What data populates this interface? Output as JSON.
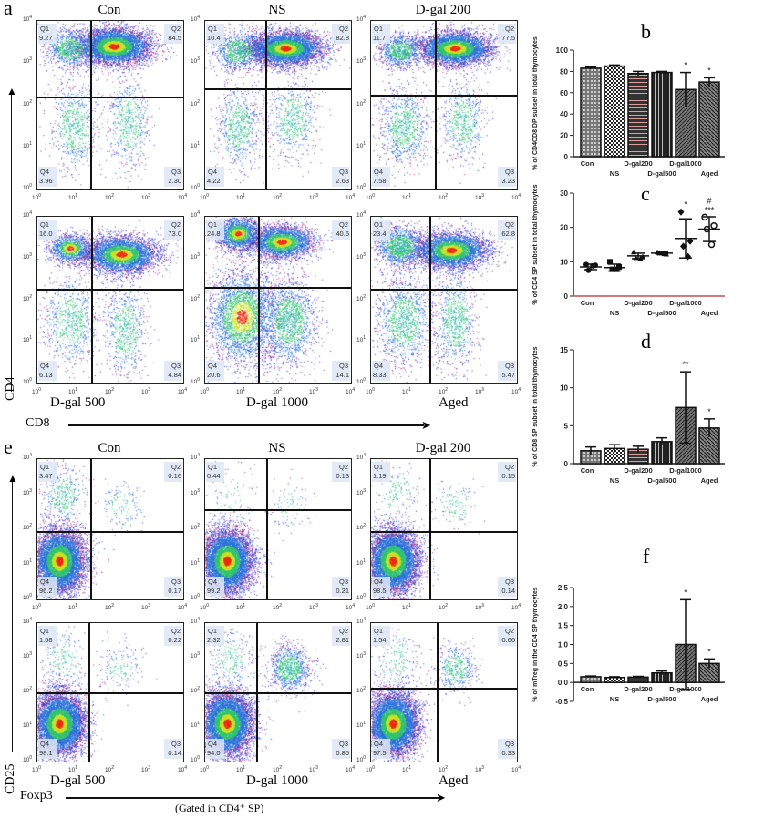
{
  "panel_labels": {
    "a": "a",
    "b": "b",
    "c": "c",
    "d": "d",
    "e": "e",
    "f": "f"
  },
  "panel_a": {
    "x_axis": "CD8",
    "y_axis": "CD4",
    "plots": [
      {
        "title": "Con",
        "q1": "9.27",
        "q2": "84.5",
        "q3": "2.30",
        "q4": "3.96"
      },
      {
        "title": "NS",
        "q1": "10.4",
        "q2": "82.8",
        "q3": "2.63",
        "q4": "4.22"
      },
      {
        "title": "D-gal 200",
        "q1": "11.7",
        "q2": "77.5",
        "q3": "3.23",
        "q4": "7.58"
      },
      {
        "title": "D-gal 500",
        "q1": "16.0",
        "q2": "73.0",
        "q3": "4.84",
        "q4": "6.13"
      },
      {
        "title": "D-gal 1000",
        "q1": "24.8",
        "q2": "40.6",
        "q3": "14.1",
        "q4": "20.6"
      },
      {
        "title": "Aged",
        "q1": "23.4",
        "q2": "62.8",
        "q3": "5.47",
        "q4": "8.33"
      }
    ]
  },
  "panel_e": {
    "x_axis": "Foxp3",
    "y_axis": "CD25",
    "gating_note": "(Gated in CD4⁺ SP)",
    "plots": [
      {
        "title": "Con",
        "q1": "3.47",
        "q2": "0.16",
        "q3": "0.17",
        "q4": "96.2"
      },
      {
        "title": "NS",
        "q1": "0.44",
        "q2": "0.13",
        "q3": "0.21",
        "q4": "99.2"
      },
      {
        "title": "D-gal 200",
        "q1": "1.19",
        "q2": "0.15",
        "q3": "0.14",
        "q4": "98.5"
      },
      {
        "title": "D-gal 500",
        "q1": "1.58",
        "q2": "0.22",
        "q3": "0.14",
        "q4": "98.1"
      },
      {
        "title": "D-gal 1000",
        "q1": "2.32",
        "q2": "2.81",
        "q3": "0.85",
        "q4": "94.0"
      },
      {
        "title": "Aged",
        "q1": "1.54",
        "q2": "0.66",
        "q3": "0.33",
        "q4": "97.5"
      }
    ]
  },
  "quadrant_names": [
    "Q1",
    "Q2",
    "Q3",
    "Q4"
  ],
  "flow_ticks": [
    "0",
    "1",
    "2",
    "3",
    "4"
  ],
  "chart_data": [
    {
      "id": "b",
      "type": "bar",
      "ylabel": "% of CD4CD8 DP subset in total thymocytes",
      "categories": [
        "Con",
        "NS",
        "D-gal200",
        "D-gal500",
        "D-gal1000",
        "Aged"
      ],
      "values": [
        83,
        85,
        78,
        79,
        63,
        70
      ],
      "errors": [
        1,
        1,
        2,
        1,
        16,
        4
      ],
      "annotations": [
        "",
        "",
        "",
        "",
        "*",
        "*"
      ],
      "ylim": [
        0,
        100
      ],
      "yticks": [
        "0",
        "20",
        "40",
        "60",
        "80",
        "100"
      ]
    },
    {
      "id": "c",
      "type": "scatter",
      "ylabel": "% of CD4 SP subset in total thymocytes",
      "categories": [
        "Con",
        "NS",
        "D-gal200",
        "D-gal500",
        "D-gal1000",
        "Aged"
      ],
      "points": [
        [
          9.2,
          9.0,
          7.5,
          8.8
        ],
        [
          10.0,
          8.5,
          7.8,
          7.8
        ],
        [
          12.8,
          11.5,
          11.2,
          11.0
        ],
        [
          12.8,
          12.2,
          12.5,
          12.3
        ],
        [
          24.5,
          16.0,
          14.5,
          11.5
        ],
        [
          23.0,
          20.5,
          19.5,
          15.0
        ]
      ],
      "means": [
        8.5,
        8.3,
        11.7,
        12.5,
        16.8,
        19.5
      ],
      "errors": [
        0.8,
        1.0,
        0.8,
        0.3,
        5.7,
        3.6
      ],
      "annotations": [
        "",
        "",
        "",
        "",
        "*",
        "#\n***"
      ],
      "ylim": [
        0,
        30
      ],
      "yticks": [
        "0",
        "10",
        "20",
        "30"
      ]
    },
    {
      "id": "d",
      "type": "bar",
      "ylabel": "% of CD8 SP subset in total thymocytes",
      "categories": [
        "Con",
        "NS",
        "D-gal200",
        "D-gal500",
        "D-gal1000",
        "Aged"
      ],
      "values": [
        1.7,
        2.0,
        1.9,
        2.9,
        7.4,
        4.7
      ],
      "errors": [
        0.5,
        0.5,
        0.4,
        0.5,
        4.7,
        1.2
      ],
      "annotations": [
        "",
        "",
        "",
        "",
        "**",
        "*"
      ],
      "ylim": [
        0,
        15
      ],
      "yticks": [
        "0",
        "5",
        "10",
        "15"
      ]
    },
    {
      "id": "f",
      "type": "bar",
      "ylabel": "% of mTreg in the CD4 SP thymocytes",
      "categories": [
        "Con",
        "NS",
        "D-gal200",
        "D-gal500",
        "D-gal1000",
        "Aged"
      ],
      "values": [
        0.15,
        0.13,
        0.14,
        0.25,
        1.0,
        0.5
      ],
      "errors": [
        0.02,
        0.02,
        0.02,
        0.05,
        1.18,
        0.12
      ],
      "annotations": [
        "",
        "",
        "",
        "",
        "*",
        "*"
      ],
      "ylim": [
        -0.5,
        2.5
      ],
      "yticks": [
        "-0.5",
        "0.0",
        "0.5",
        "1.0",
        "1.5",
        "2.0",
        "2.5"
      ]
    }
  ],
  "colors": {
    "axis": "#c0504d",
    "bar_fill": "#555555",
    "scatter_low": "#2233cc",
    "scatter_mid": "#33cc33",
    "scatter_high": "#ee2200"
  }
}
